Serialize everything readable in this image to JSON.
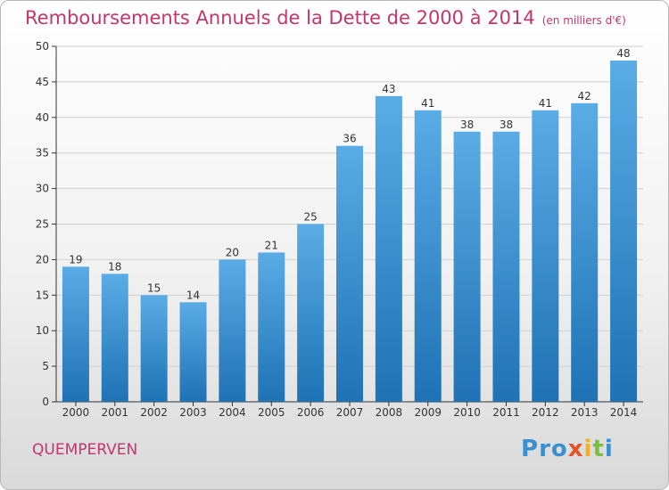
{
  "header": {
    "title": "Remboursements Annuels de la Dette de 2000 à 2014",
    "unit": "(en milliers d'€)"
  },
  "footer": {
    "commune": "QUEMPERVEN",
    "logo_letters": [
      "P",
      "r",
      "o",
      "x",
      "i",
      "t",
      "i"
    ],
    "logo_colors": [
      "#3b8fd1",
      "#3b8fd1",
      "#3b8fd1",
      "#e0542a",
      "#f2b01e",
      "#7cbf3c",
      "#3b8fd1"
    ]
  },
  "colors": {
    "title": "#c4366b",
    "bar_top": "#5aace6",
    "bar_bottom": "#1f72b4",
    "axis": "#333333",
    "grid": "#cfcfcf"
  },
  "chart_data": {
    "type": "bar",
    "title": "Remboursements Annuels de la Dette de 2000 à 2014",
    "xlabel": "",
    "ylabel": "",
    "categories": [
      "2000",
      "2001",
      "2002",
      "2003",
      "2004",
      "2005",
      "2006",
      "2007",
      "2008",
      "2009",
      "2010",
      "2011",
      "2012",
      "2013",
      "2014"
    ],
    "values": [
      19,
      18,
      15,
      14,
      20,
      21,
      25,
      36,
      43,
      41,
      38,
      38,
      41,
      42,
      48
    ],
    "ylim": [
      0,
      50
    ],
    "yticks": [
      0,
      5,
      10,
      15,
      20,
      25,
      30,
      35,
      40,
      45,
      50
    ],
    "grid": true
  }
}
